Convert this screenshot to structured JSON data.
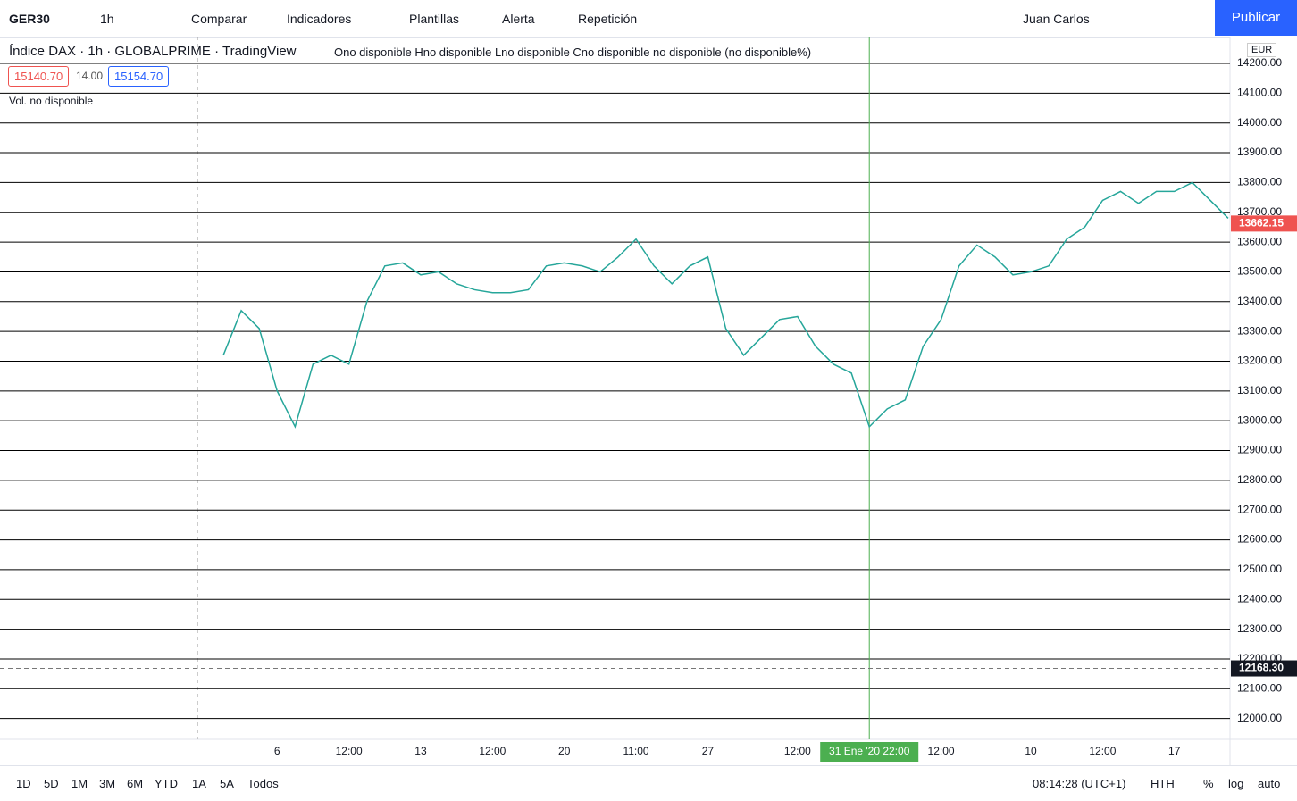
{
  "toolbar": {
    "symbol": "GER30",
    "interval": "1h",
    "compare": "Comparar",
    "indicators": "Indicadores",
    "templates": "Plantillas",
    "alert": "Alerta",
    "replay": "Repetición",
    "user": "Juan Carlos",
    "publish": "Publicar"
  },
  "legend": {
    "title": "Índice DAX · 1h · GLOBALPRIME · TradingView",
    "ohlc": "Ono disponible Hno disponible Lno disponible Cno disponible no disponible (no disponible%)",
    "bid": "15140.70",
    "spread": "14.00",
    "ask": "15154.70",
    "volume": "Vol.  no disponible",
    "currency": "EUR"
  },
  "chart_data": {
    "type": "line",
    "color": "#26a69a",
    "categories": [
      null,
      null,
      null,
      "6",
      null,
      null,
      null,
      "12:00",
      null,
      null,
      null,
      "13",
      null,
      null,
      null,
      "12:00",
      null,
      null,
      null,
      "20",
      null,
      null,
      null,
      "11:00",
      null,
      null,
      null,
      "27",
      null,
      null,
      null,
      null,
      "12:00",
      null,
      null,
      null,
      "31 Ene '20  22:00",
      null,
      null,
      null,
      "12:00",
      null,
      null,
      null,
      null,
      "10",
      null,
      null,
      null,
      "12:00",
      null,
      null,
      null,
      "17",
      null,
      null,
      null
    ],
    "values": [
      13220,
      13370,
      13310,
      13100,
      12980,
      13190,
      13220,
      13190,
      13400,
      13520,
      13530,
      13490,
      13500,
      13460,
      13440,
      13430,
      13430,
      13440,
      13520,
      13530,
      13520,
      13500,
      13550,
      13610,
      13520,
      13460,
      13520,
      13550,
      13310,
      13220,
      13280,
      13340,
      13350,
      13250,
      13190,
      13160,
      12980,
      13040,
      13070,
      13250,
      13340,
      13520,
      13590,
      13550,
      13490,
      13500,
      13520,
      13610,
      13650,
      13740,
      13770,
      13730,
      13770,
      13770,
      13800,
      13740,
      13680
    ],
    "ylim": [
      11930,
      14290
    ],
    "yticks": [
      {
        "value": 12000,
        "label": "12000.00"
      },
      {
        "value": 12100,
        "label": "12100.00"
      },
      {
        "value": 12200,
        "label": "12200.00"
      },
      {
        "value": 12300,
        "label": "12300.00"
      },
      {
        "value": 12400,
        "label": "12400.00"
      },
      {
        "value": 12500,
        "label": "12500.00"
      },
      {
        "value": 12600,
        "label": "12600.00"
      },
      {
        "value": 12700,
        "label": "12700.00"
      },
      {
        "value": 12800,
        "label": "12800.00"
      },
      {
        "value": 12900,
        "label": "12900.00"
      },
      {
        "value": 13000,
        "label": "13000.00"
      },
      {
        "value": 13100,
        "label": "13100.00"
      },
      {
        "value": 13200,
        "label": "13200.00"
      },
      {
        "value": 13300,
        "label": "13300.00"
      },
      {
        "value": 13400,
        "label": "13400.00"
      },
      {
        "value": 13500,
        "label": "13500.00"
      },
      {
        "value": 13600,
        "label": "13600.00"
      },
      {
        "value": 13700,
        "label": "13700.00"
      },
      {
        "value": 13800,
        "label": "13800.00"
      },
      {
        "value": 13900,
        "label": "13900.00"
      },
      {
        "value": 14000,
        "label": "14000.00"
      },
      {
        "value": 14100,
        "label": "14100.00"
      },
      {
        "value": 14200,
        "label": "14200.00"
      }
    ],
    "grid": true,
    "highlight_index": 36,
    "last_price": 13662.15,
    "crosshair_price": {
      "value": 12168.3,
      "label": "12168.30"
    }
  },
  "bottom_bar": {
    "ranges": [
      "1D",
      "5D",
      "1M",
      "3M",
      "6M",
      "YTD",
      "1A",
      "5A",
      "Todos"
    ],
    "clock": "08:14:28 (UTC+1)",
    "session": "HTH",
    "percent": "%",
    "log": "log",
    "auto": "auto"
  }
}
